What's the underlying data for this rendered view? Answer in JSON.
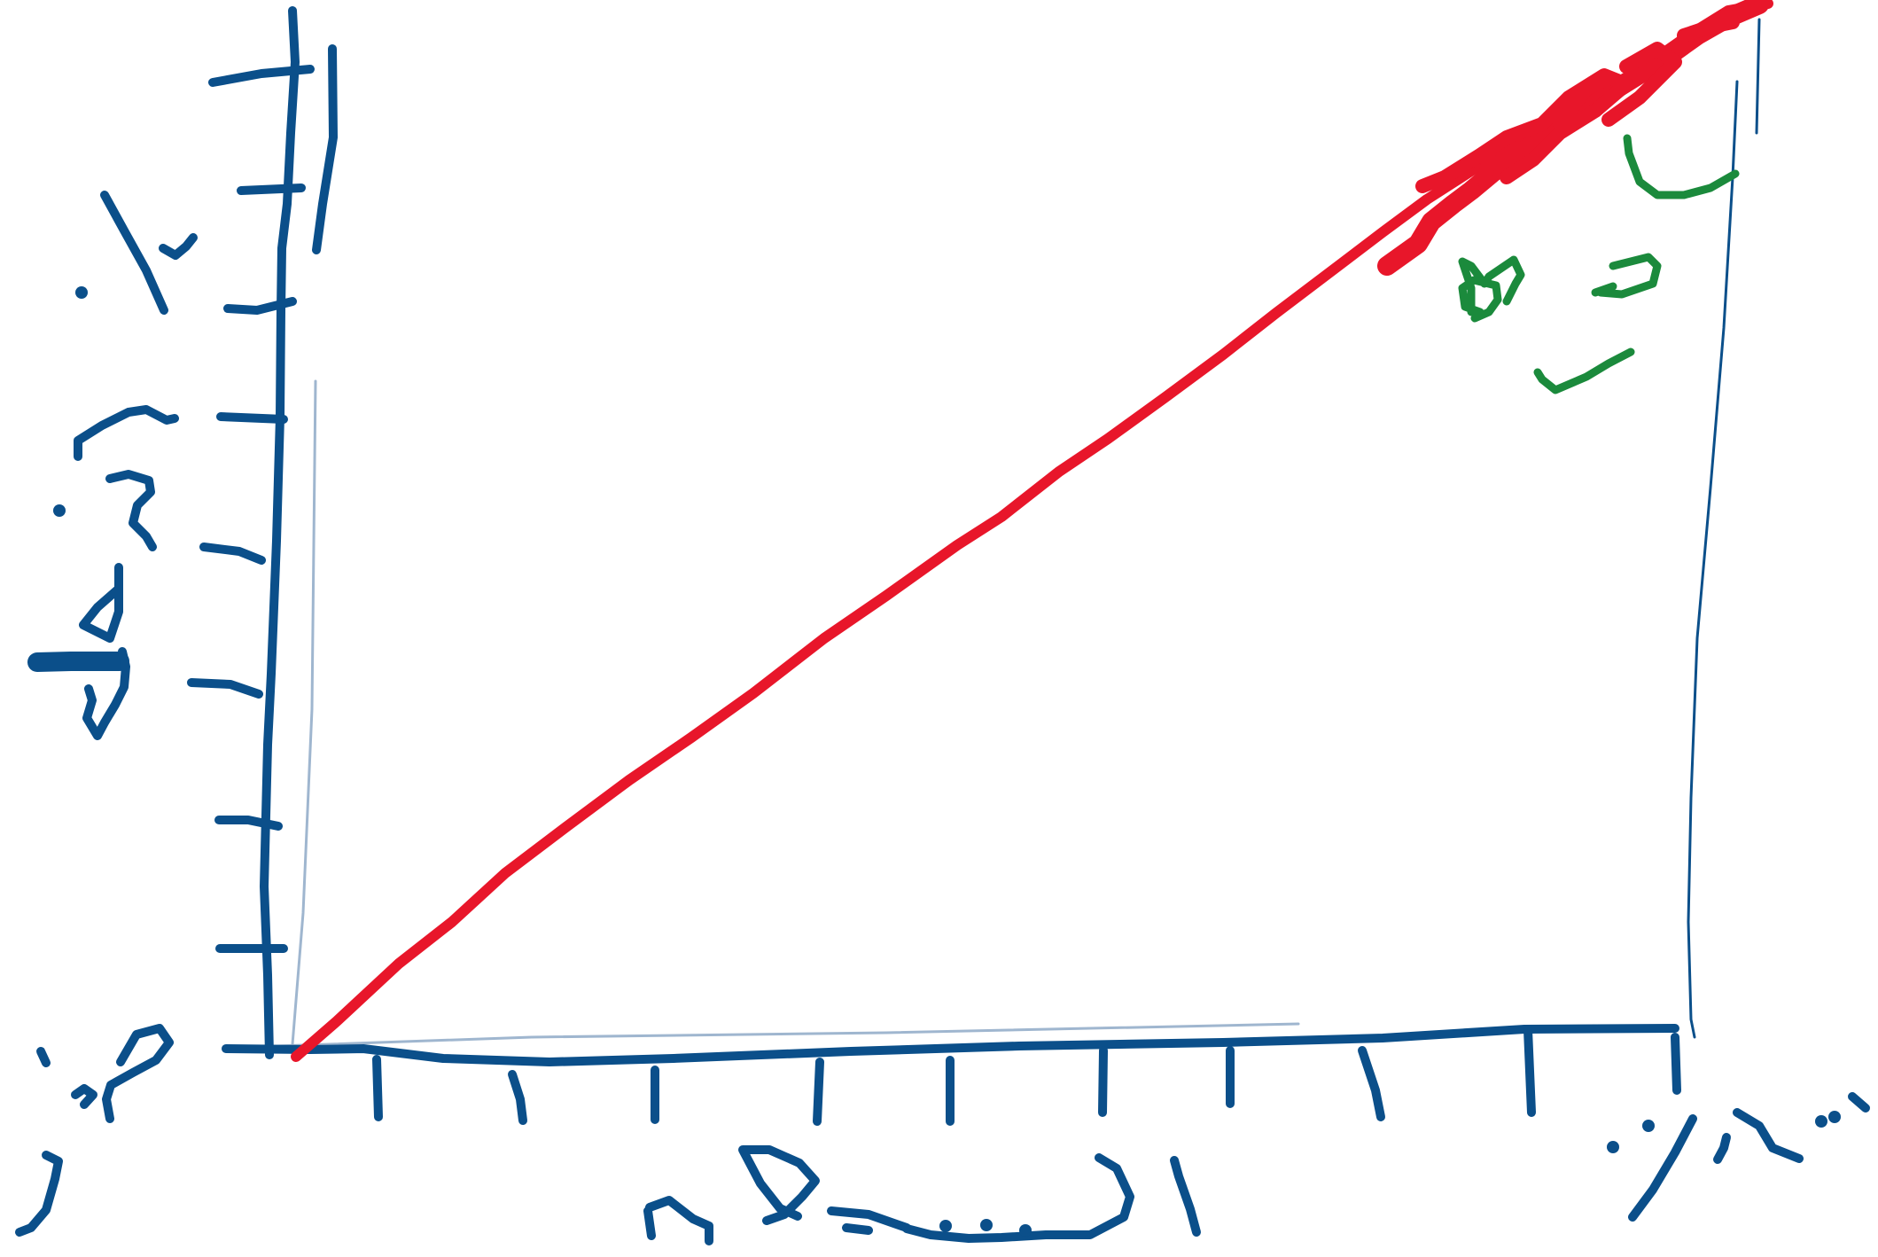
{
  "labels": {
    "origin": "صفر",
    "y_axis_title": "زمان",
    "y_max": "۱۰",
    "x_axis_title": "النسخة",
    "x_max": "۱٬۰۰۰",
    "curve_label": "لوغ"
  },
  "colors": {
    "axes": "#0b4f8a",
    "curve": "#e8162a",
    "annotation": "#1b8a3c",
    "guide": "#9fb6cf"
  }
}
